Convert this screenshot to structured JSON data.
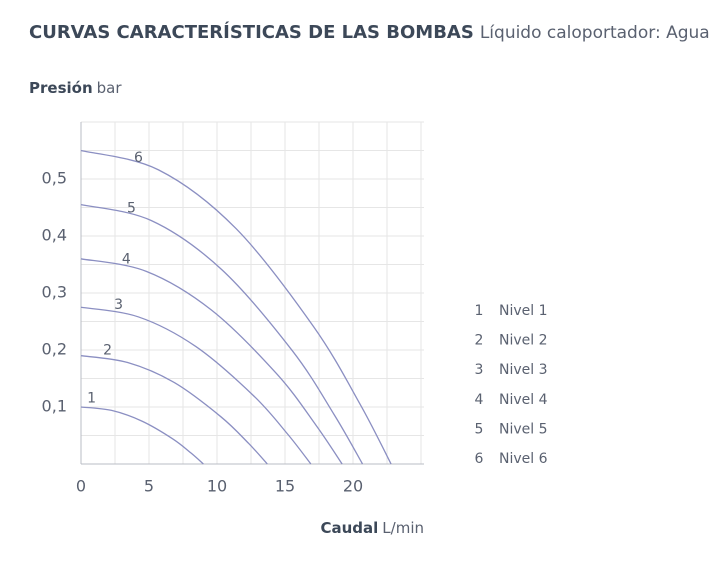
{
  "chart_data": {
    "type": "line",
    "title": "CURVAS CARACTERÍSTICAS DE LAS BOMBAS",
    "subtitle": "Líquido caloportador: Agua",
    "y_label": "Presión",
    "y_unit": "bar",
    "x_label": "Caudal",
    "x_unit": "L/min",
    "xlim": [
      0,
      25
    ],
    "ylim": [
      0,
      0.6
    ],
    "xticks": [
      0,
      5,
      10,
      15,
      20
    ],
    "yticks": [
      {
        "value": 0.1,
        "label": "0,1"
      },
      {
        "value": 0.2,
        "label": "0,2"
      },
      {
        "value": 0.3,
        "label": "0,3"
      },
      {
        "value": 0.4,
        "label": "0,4"
      },
      {
        "value": 0.5,
        "label": "0,5"
      }
    ],
    "xgrid": [
      2.5,
      5,
      7.5,
      10,
      12.5,
      15,
      17.5,
      20,
      22.5,
      25
    ],
    "ygrid": [
      0.05,
      0.1,
      0.15,
      0.2,
      0.25,
      0.3,
      0.35,
      0.4,
      0.45,
      0.5,
      0.55,
      0.6
    ],
    "grid": true,
    "color": "#8b8fc2",
    "legend": "right",
    "series": [
      {
        "label": "1",
        "name": "Nivel 1",
        "x": [
          0,
          2.25,
          4.5,
          6.75,
          8.1,
          9
        ],
        "values": [
          0.1,
          0.094,
          0.075,
          0.044,
          0.019,
          0
        ]
      },
      {
        "label": "2",
        "name": "Nivel 2",
        "x": [
          0,
          3.43,
          6.85,
          10.28,
          12.33,
          13.7
        ],
        "values": [
          0.19,
          0.178,
          0.143,
          0.083,
          0.036,
          0
        ]
      },
      {
        "label": "3",
        "name": "Nivel 3",
        "x": [
          0,
          4.23,
          8.45,
          12.68,
          15.21,
          16.9
        ],
        "values": [
          0.275,
          0.258,
          0.206,
          0.12,
          0.052,
          0
        ]
      },
      {
        "label": "4",
        "name": "Nivel 4",
        "x": [
          0,
          4.8,
          9.6,
          14.4,
          17.28,
          19.2
        ],
        "values": [
          0.36,
          0.338,
          0.27,
          0.158,
          0.068,
          0
        ]
      },
      {
        "label": "5",
        "name": "Nivel 5",
        "x": [
          0,
          5.18,
          10.35,
          15.53,
          18.63,
          20.7
        ],
        "values": [
          0.455,
          0.427,
          0.341,
          0.199,
          0.086,
          0
        ]
      },
      {
        "label": "6",
        "name": "Nivel 6",
        "x": [
          0,
          5.7,
          11.4,
          17.1,
          20.52,
          22.8
        ],
        "values": [
          0.55,
          0.516,
          0.413,
          0.241,
          0.105,
          0
        ]
      }
    ]
  }
}
